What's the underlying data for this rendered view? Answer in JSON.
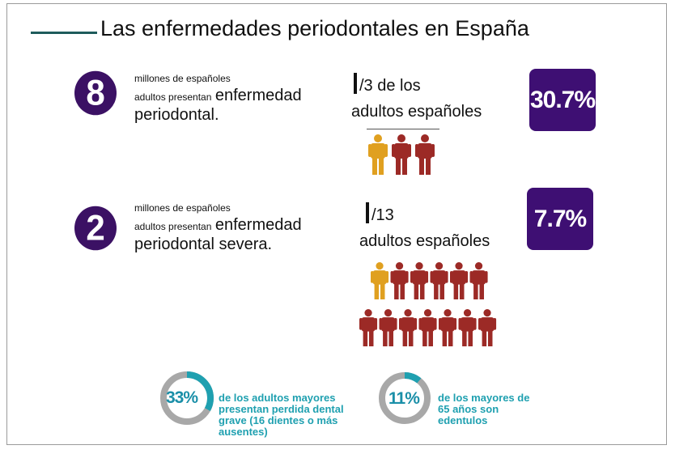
{
  "title": "Las enfermedades periodontales en España",
  "row1": {
    "number": "8",
    "small_line1": "millones de españoles",
    "small_line2": "adultos presentan",
    "big_line1": "enfermedad",
    "big_line2": "periodontal.",
    "fraction_line1": "/3 de los",
    "fraction_line2": "adultos españoles",
    "percent": "30.7%",
    "people_total": 3,
    "people_highlight": 1
  },
  "row2": {
    "number": "2",
    "small_line1": "millones de españoles",
    "small_line2": "adultos presentan",
    "big_line1": "enfermedad",
    "big_line2": "periodontal severa.",
    "fraction_line1": "/13",
    "fraction_line2": "adultos españoles",
    "percent": "7.7%",
    "people_total": 13,
    "people_highlight": 1
  },
  "donuts": [
    {
      "value": 33,
      "label": "33%",
      "text": [
        "de los adultos mayores",
        "presentan perdida dental",
        "grave (16 dientes o más",
        "ausentes)"
      ]
    },
    {
      "value": 11,
      "label": "11%",
      "text": [
        "de los mayores de",
        "65 años son",
        "edentulos"
      ]
    }
  ],
  "colors": {
    "purple": "#3e0f73",
    "person_gold": "#e0a020",
    "person_red": "#9c2a26",
    "teal": "#1fa0b0",
    "ring_grey": "#a8a8a8"
  }
}
